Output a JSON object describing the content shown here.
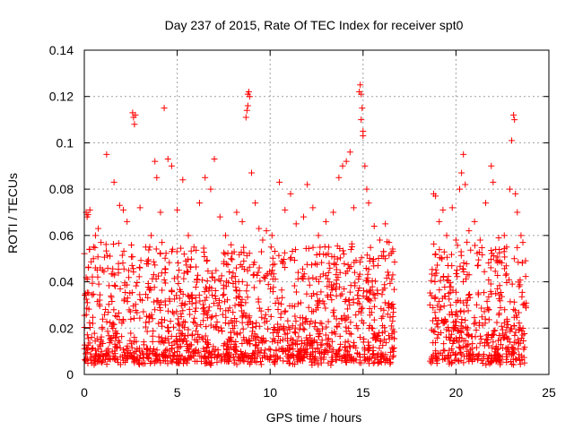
{
  "chart_data": {
    "type": "scatter",
    "title": "Day 237 of 2015, Rate Of TEC Index for receiver spt0",
    "xlabel": "GPS time / hours",
    "ylabel": "ROTI / TECUs",
    "xlim": [
      0,
      25
    ],
    "ylim": [
      0,
      0.14
    ],
    "x_ticks": [
      0,
      5,
      10,
      15,
      20,
      25
    ],
    "y_ticks": [
      0,
      0.02,
      0.04,
      0.06,
      0.08,
      0.1,
      0.12,
      0.14
    ],
    "x_tick_labels": [
      "0",
      "5",
      "10",
      "15",
      "20",
      "25"
    ],
    "y_tick_labels": [
      "0",
      "0.02",
      "0.04",
      "0.06",
      "0.08",
      "0.1",
      "0.12",
      "0.14"
    ],
    "grid": true,
    "marker": "+",
    "color": "#ff0000",
    "series": [
      {
        "name": "ROTI",
        "points": [
          [
            0.1,
            0.07
          ],
          [
            0.2,
            0.069
          ],
          [
            0.3,
            0.071
          ],
          [
            0.15,
            0.068
          ],
          [
            0.5,
            0.055
          ],
          [
            0.6,
            0.06
          ],
          [
            0.75,
            0.063
          ],
          [
            0.9,
            0.057
          ],
          [
            1.2,
            0.095
          ],
          [
            1.6,
            0.083
          ],
          [
            1.9,
            0.073
          ],
          [
            2.1,
            0.071
          ],
          [
            2.3,
            0.066
          ],
          [
            2.6,
            0.113
          ],
          [
            2.65,
            0.111
          ],
          [
            2.7,
            0.108
          ],
          [
            2.75,
            0.112
          ],
          [
            3.0,
            0.072
          ],
          [
            3.3,
            0.055
          ],
          [
            3.6,
            0.06
          ],
          [
            3.8,
            0.092
          ],
          [
            3.9,
            0.085
          ],
          [
            4.1,
            0.07
          ],
          [
            4.3,
            0.115
          ],
          [
            4.5,
            0.093
          ],
          [
            4.7,
            0.09
          ],
          [
            5.0,
            0.071
          ],
          [
            5.3,
            0.084
          ],
          [
            5.6,
            0.06
          ],
          [
            5.9,
            0.055
          ],
          [
            6.2,
            0.074
          ],
          [
            6.5,
            0.085
          ],
          [
            6.8,
            0.08
          ],
          [
            7.0,
            0.093
          ],
          [
            7.3,
            0.068
          ],
          [
            7.6,
            0.06
          ],
          [
            7.9,
            0.056
          ],
          [
            8.2,
            0.07
          ],
          [
            8.5,
            0.066
          ],
          [
            8.7,
            0.111
          ],
          [
            8.8,
            0.121
          ],
          [
            8.85,
            0.122
          ],
          [
            8.9,
            0.12
          ],
          [
            8.75,
            0.114
          ],
          [
            8.8,
            0.116
          ],
          [
            9.0,
            0.087
          ],
          [
            9.2,
            0.074
          ],
          [
            9.4,
            0.063
          ],
          [
            9.6,
            0.058
          ],
          [
            9.8,
            0.062
          ],
          [
            10.1,
            0.06
          ],
          [
            10.5,
            0.083
          ],
          [
            10.8,
            0.071
          ],
          [
            11.1,
            0.078
          ],
          [
            11.4,
            0.065
          ],
          [
            11.8,
            0.068
          ],
          [
            12.0,
            0.082
          ],
          [
            12.3,
            0.072
          ],
          [
            12.6,
            0.06
          ],
          [
            13.0,
            0.066
          ],
          [
            13.4,
            0.07
          ],
          [
            13.7,
            0.085
          ],
          [
            13.9,
            0.09
          ],
          [
            14.1,
            0.092
          ],
          [
            14.3,
            0.096
          ],
          [
            14.5,
            0.072
          ],
          [
            14.8,
            0.122
          ],
          [
            14.85,
            0.125
          ],
          [
            14.9,
            0.121
          ],
          [
            14.95,
            0.115
          ],
          [
            14.9,
            0.11
          ],
          [
            15.0,
            0.103
          ],
          [
            15.0,
            0.105
          ],
          [
            15.1,
            0.09
          ],
          [
            15.2,
            0.08
          ],
          [
            15.3,
            0.074
          ],
          [
            15.6,
            0.064
          ],
          [
            15.9,
            0.058
          ],
          [
            16.2,
            0.065
          ],
          [
            16.4,
            0.057
          ],
          [
            16.6,
            0.043
          ],
          [
            18.8,
            0.078
          ],
          [
            18.9,
            0.077
          ],
          [
            19.1,
            0.066
          ],
          [
            19.3,
            0.071
          ],
          [
            19.5,
            0.06
          ],
          [
            19.8,
            0.072
          ],
          [
            20.0,
            0.058
          ],
          [
            20.2,
            0.08
          ],
          [
            20.3,
            0.087
          ],
          [
            20.4,
            0.095
          ],
          [
            20.5,
            0.082
          ],
          [
            20.7,
            0.062
          ],
          [
            21.0,
            0.066
          ],
          [
            21.3,
            0.058
          ],
          [
            21.6,
            0.074
          ],
          [
            21.9,
            0.09
          ],
          [
            22.0,
            0.083
          ],
          [
            22.3,
            0.059
          ],
          [
            22.6,
            0.06
          ],
          [
            22.9,
            0.08
          ],
          [
            23.0,
            0.101
          ],
          [
            23.1,
            0.112
          ],
          [
            23.15,
            0.11
          ],
          [
            23.2,
            0.078
          ],
          [
            23.3,
            0.07
          ],
          [
            23.5,
            0.06
          ],
          [
            23.6,
            0.057
          ]
        ]
      }
    ]
  }
}
